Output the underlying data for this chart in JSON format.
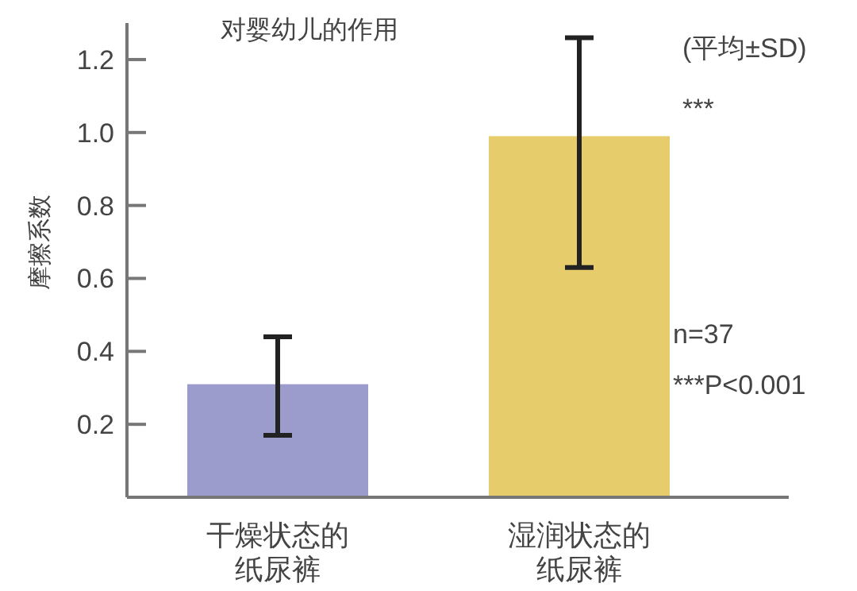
{
  "chart_data": {
    "type": "bar",
    "title": "对婴幼儿的作用",
    "ylabel": "摩擦系数",
    "categories": [
      "干燥状态的纸尿裤",
      "湿润状态的纸尿裤"
    ],
    "values": [
      0.31,
      0.99
    ],
    "colors": [
      "#9b9ccc",
      "#e6cc6a"
    ],
    "errors": [
      [
        0.17,
        0.44
      ],
      [
        0.63,
        1.26
      ]
    ],
    "ylim": [
      0,
      1.3
    ],
    "yticks": [
      0.2,
      0.4,
      0.6,
      0.8,
      {
        "value": 1,
        "label": "1.0"
      },
      1.2
    ],
    "annotations": [
      "(平均±SD)",
      "***",
      "n=37",
      "***P<0.001"
    ],
    "grid": false
  }
}
